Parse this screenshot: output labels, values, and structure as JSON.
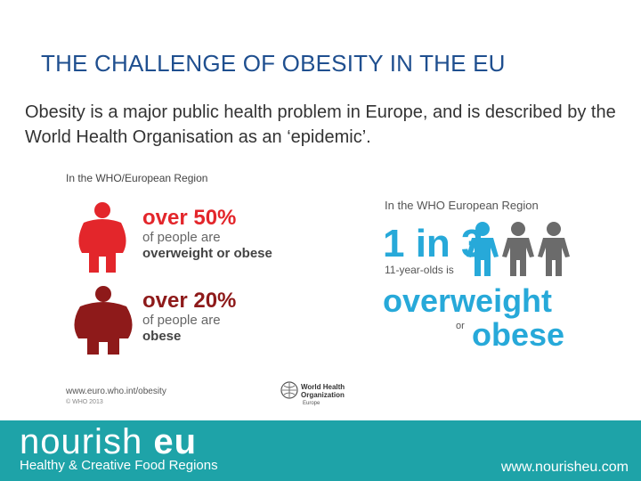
{
  "slide": {
    "title": "THE CHALLENGE OF OBESITY IN THE EU",
    "intro": "Obesity is a major public health problem in Europe, and is described by the World Health Organisation as an ‘epidemic’."
  },
  "infographic_left": {
    "region_label": "In the WHO/European Region",
    "stat1": {
      "value": "over 50%",
      "line1": "of people are",
      "line2": "overweight or obese",
      "color": "#e3262b"
    },
    "stat2": {
      "value": "over 20%",
      "line1": "of people are",
      "line2": "obese",
      "color": "#8e1a1a"
    },
    "url": "www.euro.who.int/obesity",
    "copyright": "© WHO 2013",
    "who_logo": {
      "line1": "World Health",
      "line2": "Organization",
      "line3": "Europe",
      "icon": "who-emblem-icon"
    }
  },
  "infographic_right": {
    "region_label": "In the WHO European Region",
    "ratio": "1 in 3",
    "age_group": "11-year-olds is",
    "word1": "overweight",
    "word_or": "or",
    "word2": "obese",
    "accent": "#27a9d9",
    "grey": "#6b6b6b"
  },
  "footer": {
    "brand_part1": "nourish",
    "brand_part2": "eu",
    "tagline": "Healthy & Creative Food Regions",
    "website": "www.nourisheu.com",
    "background": "#1ea3a8"
  }
}
